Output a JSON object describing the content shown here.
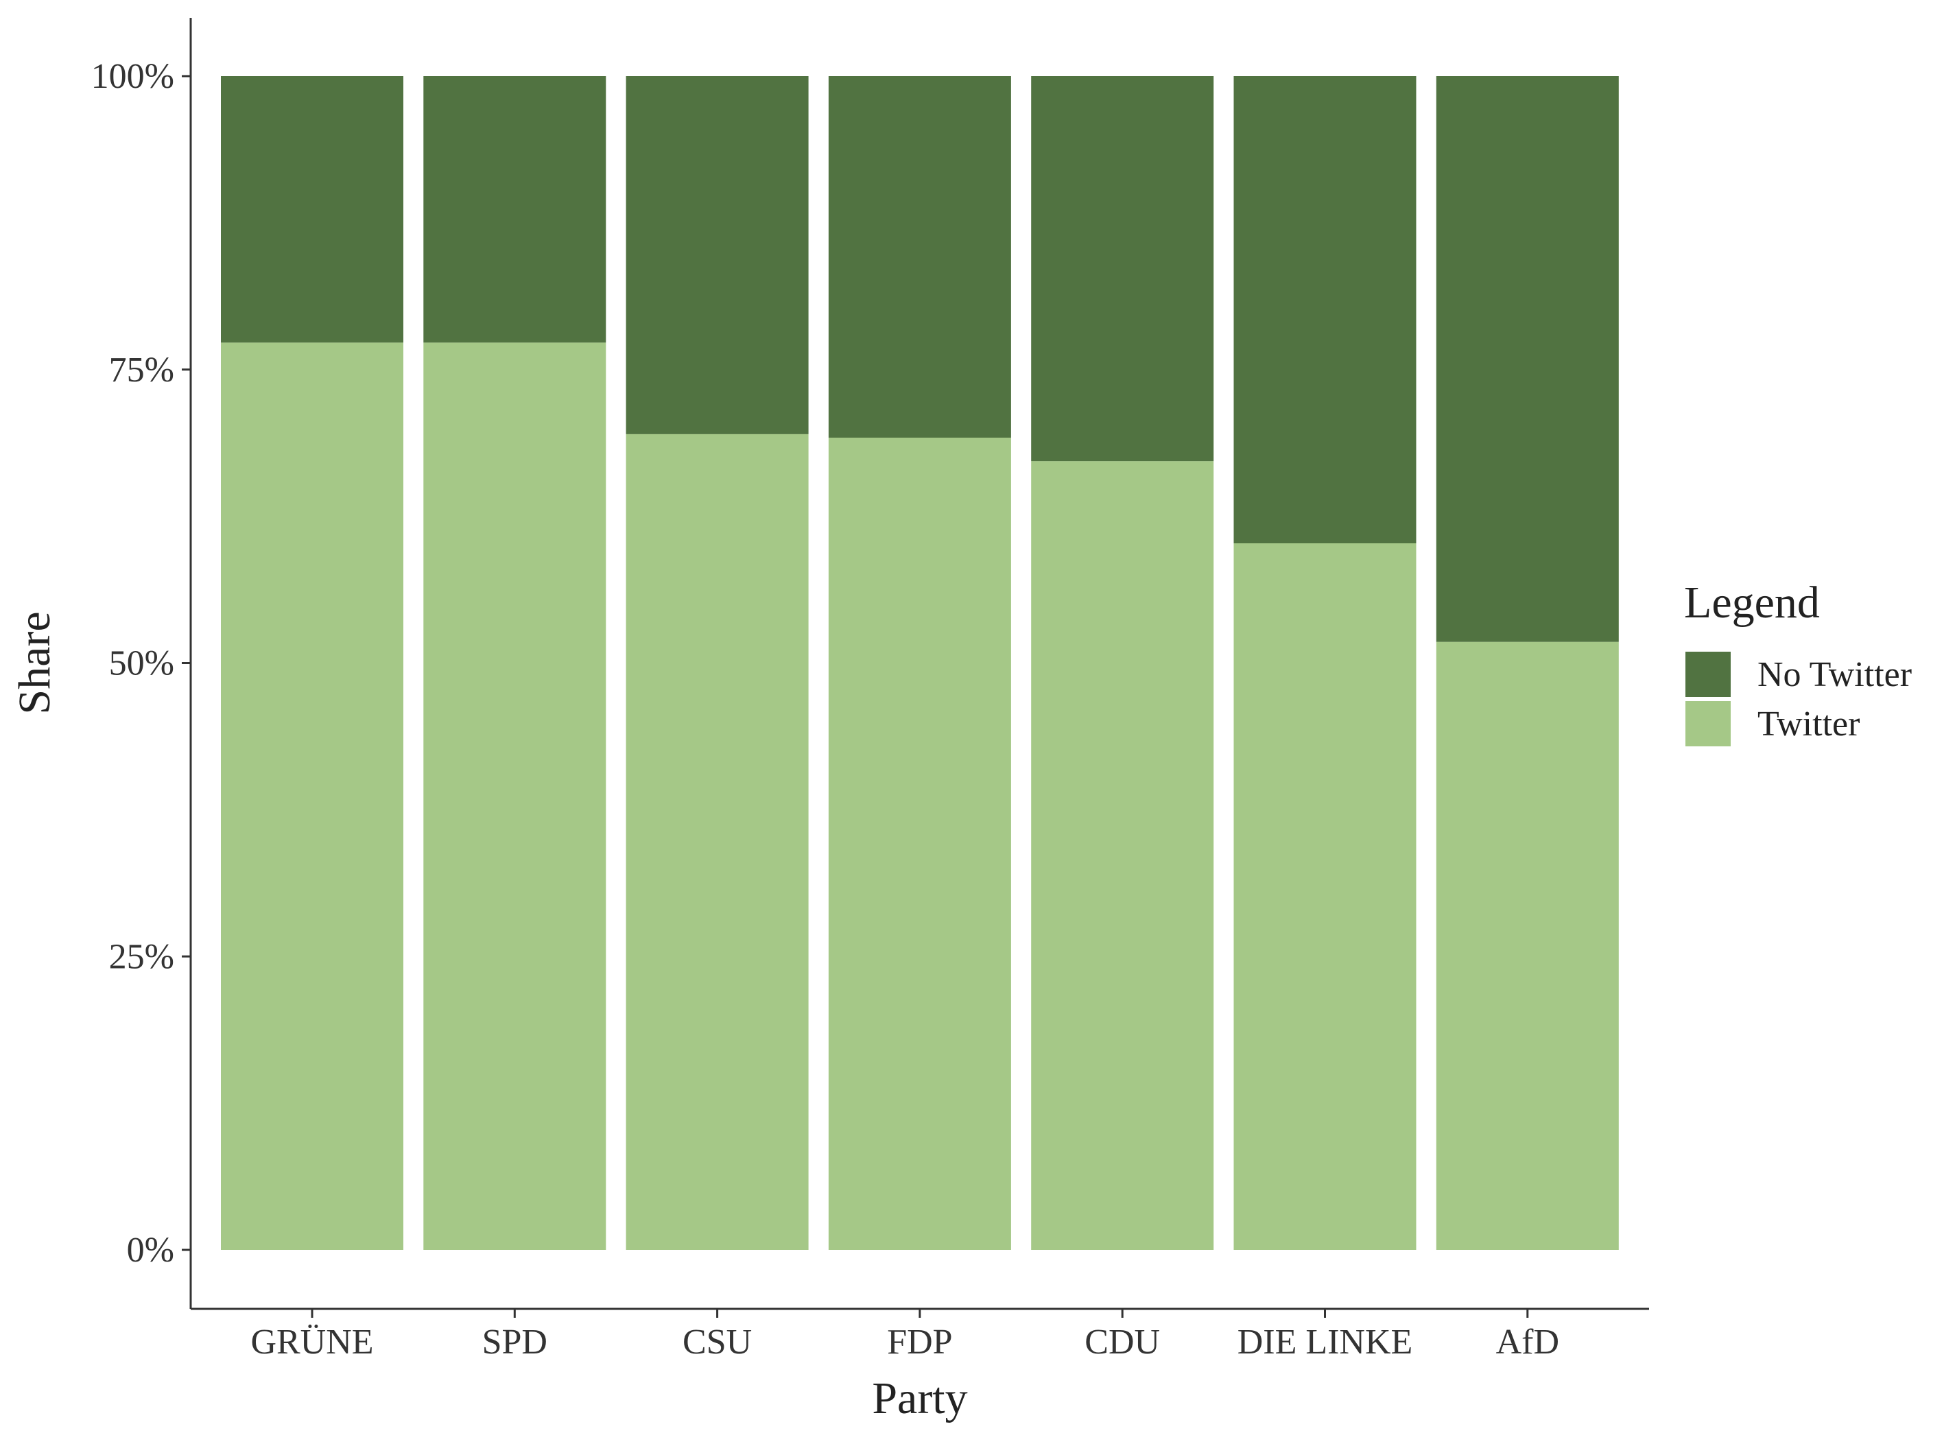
{
  "chart_data": {
    "type": "bar",
    "stacked": true,
    "percent": true,
    "categories": [
      "GRÜNE",
      "SPD",
      "CSU",
      "FDP",
      "CDU",
      "DIE LINKE",
      "AfD"
    ],
    "series": [
      {
        "name": "Twitter",
        "color": "#a5c887",
        "values": [
          77.3,
          77.3,
          69.5,
          69.2,
          67.2,
          60.2,
          51.8
        ]
      },
      {
        "name": "No Twitter",
        "color": "#517341",
        "values": [
          22.7,
          22.7,
          30.5,
          30.8,
          32.8,
          39.8,
          48.2
        ]
      }
    ],
    "xlabel": "Party",
    "ylabel": "Share",
    "ylim": [
      0,
      100
    ],
    "yticks": [
      0,
      25,
      50,
      75,
      100
    ],
    "ytick_labels": [
      "0%",
      "25%",
      "50%",
      "75%",
      "100%"
    ],
    "grid": false,
    "legend": {
      "title": "Legend",
      "position": "right",
      "entries": [
        {
          "label": "No Twitter",
          "color": "#517341"
        },
        {
          "label": "Twitter",
          "color": "#a5c887"
        }
      ]
    }
  }
}
